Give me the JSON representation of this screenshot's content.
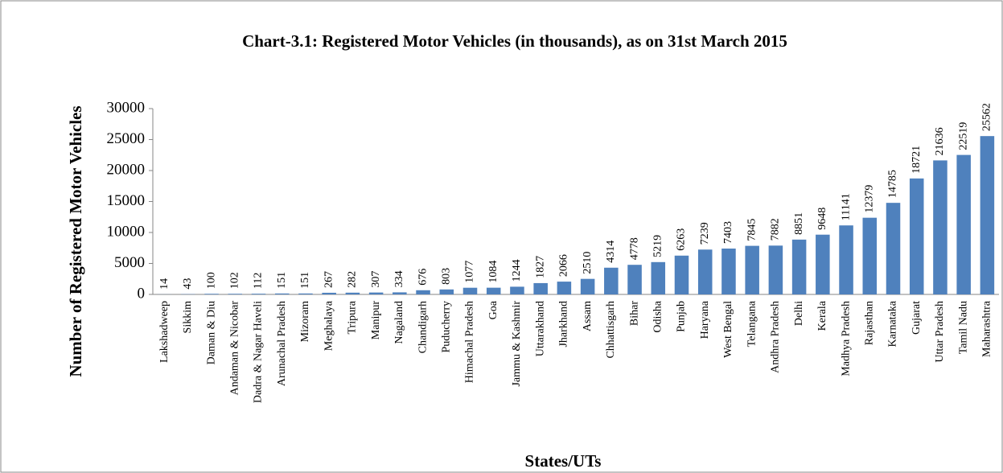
{
  "chart_data": {
    "type": "bar",
    "title": "Chart-3.1: Registered Motor Vehicles (in thousands), as on 31st March 2015",
    "x_label": "States/UTs",
    "y_label": "Number of Registered Motor Vehicles",
    "categories": [
      "Lakshadweep",
      "Sikkim",
      "Daman & Diu",
      "Andaman & Nicobar",
      "Dadra & Nagar Haveli",
      "Arunachal Pradesh",
      "Mizoram",
      "Meghalaya",
      "Tripura",
      "Manipur",
      "Nagaland",
      "Chandigarh",
      "Puducherry",
      "Himachal Pradesh",
      "Goa",
      "Jammu & Kashmir",
      "Uttarakhand",
      "Jharkhand",
      "Assam",
      "Chhattisgarh",
      "Bihar",
      "Odisha",
      "Punjab",
      "Haryana",
      "West Bengal",
      "Telangana",
      "Andhra Pradesh",
      "Delhi",
      "Kerala",
      "Madhya Pradesh",
      "Rajasthan",
      "Karnataka",
      "Gujarat",
      "Uttar Pradesh",
      "Tamil Nadu",
      "Maharashtra"
    ],
    "values": [
      14,
      43,
      100,
      102,
      112,
      151,
      151,
      267,
      282,
      307,
      334,
      676,
      803,
      1077,
      1084,
      1244,
      1827,
      2066,
      2510,
      4314,
      4778,
      5219,
      6263,
      7239,
      7403,
      7845,
      7882,
      8851,
      9648,
      11141,
      12379,
      14785,
      18721,
      21636,
      22519,
      25562
    ],
    "color": "#4f81bd",
    "ylim": [
      0,
      30000
    ],
    "yticks": [
      0,
      5000,
      10000,
      15000,
      20000,
      25000,
      30000
    ],
    "grid": false,
    "data_labels": true
  }
}
